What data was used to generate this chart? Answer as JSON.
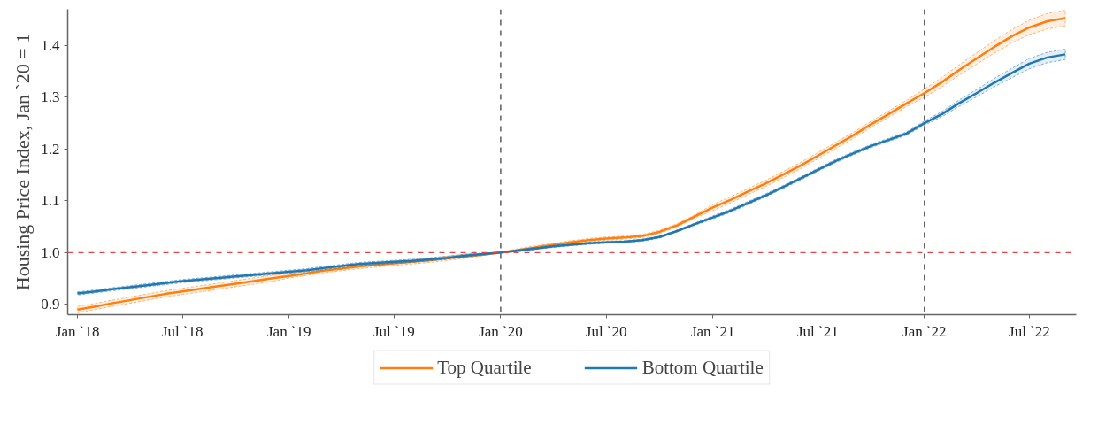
{
  "chart_data": {
    "type": "line",
    "ylabel": "Housing Price Index, Jan `20 = 1",
    "x": [
      "2018-01",
      "2018-02",
      "2018-03",
      "2018-04",
      "2018-05",
      "2018-06",
      "2018-07",
      "2018-08",
      "2018-09",
      "2018-10",
      "2018-11",
      "2018-12",
      "2019-01",
      "2019-02",
      "2019-03",
      "2019-04",
      "2019-05",
      "2019-06",
      "2019-07",
      "2019-08",
      "2019-09",
      "2019-10",
      "2019-11",
      "2019-12",
      "2020-01",
      "2020-02",
      "2020-03",
      "2020-04",
      "2020-05",
      "2020-06",
      "2020-07",
      "2020-08",
      "2020-09",
      "2020-10",
      "2020-11",
      "2020-12",
      "2021-01",
      "2021-02",
      "2021-03",
      "2021-04",
      "2021-05",
      "2021-06",
      "2021-07",
      "2021-08",
      "2021-09",
      "2021-10",
      "2021-11",
      "2021-12",
      "2022-01",
      "2022-02",
      "2022-03",
      "2022-04",
      "2022-05",
      "2022-06",
      "2022-07",
      "2022-08",
      "2022-09"
    ],
    "series": [
      {
        "name": "Top Quartile",
        "color": "#ff7f0e",
        "values": [
          0.89,
          0.896,
          0.902,
          0.908,
          0.914,
          0.92,
          0.925,
          0.93,
          0.935,
          0.94,
          0.945,
          0.95,
          0.955,
          0.96,
          0.965,
          0.969,
          0.973,
          0.976,
          0.979,
          0.982,
          0.985,
          0.989,
          0.993,
          0.996,
          1.0,
          1.005,
          1.01,
          1.015,
          1.02,
          1.024,
          1.027,
          1.029,
          1.032,
          1.04,
          1.053,
          1.07,
          1.087,
          1.102,
          1.117,
          1.133,
          1.15,
          1.168,
          1.187,
          1.207,
          1.227,
          1.248,
          1.268,
          1.288,
          1.308,
          1.33,
          1.352,
          1.375,
          1.397,
          1.418,
          1.435,
          1.447,
          1.453
        ],
        "lower": [
          0.884,
          0.89,
          0.896,
          0.902,
          0.908,
          0.914,
          0.919,
          0.924,
          0.929,
          0.934,
          0.939,
          0.944,
          0.951,
          0.956,
          0.961,
          0.965,
          0.969,
          0.972,
          0.975,
          0.978,
          0.981,
          0.985,
          0.989,
          0.994,
          1.0,
          1.002,
          1.007,
          1.012,
          1.017,
          1.021,
          1.024,
          1.026,
          1.029,
          1.037,
          1.05,
          1.067,
          1.081,
          1.096,
          1.111,
          1.127,
          1.144,
          1.162,
          1.181,
          1.201,
          1.221,
          1.242,
          1.262,
          1.282,
          1.3,
          1.321,
          1.342,
          1.364,
          1.385,
          1.405,
          1.421,
          1.432,
          1.438
        ],
        "upper": [
          0.896,
          0.902,
          0.908,
          0.914,
          0.92,
          0.926,
          0.931,
          0.936,
          0.941,
          0.946,
          0.951,
          0.956,
          0.959,
          0.964,
          0.969,
          0.973,
          0.977,
          0.98,
          0.983,
          0.986,
          0.989,
          0.993,
          0.997,
          0.998,
          1.0,
          1.008,
          1.013,
          1.018,
          1.023,
          1.027,
          1.03,
          1.032,
          1.035,
          1.043,
          1.056,
          1.073,
          1.093,
          1.108,
          1.123,
          1.139,
          1.156,
          1.174,
          1.193,
          1.213,
          1.233,
          1.254,
          1.274,
          1.294,
          1.316,
          1.339,
          1.362,
          1.386,
          1.409,
          1.431,
          1.449,
          1.462,
          1.468
        ]
      },
      {
        "name": "Bottom Quartile",
        "color": "#1f77b4",
        "values": [
          0.921,
          0.925,
          0.929,
          0.933,
          0.937,
          0.941,
          0.945,
          0.948,
          0.951,
          0.954,
          0.957,
          0.96,
          0.963,
          0.966,
          0.97,
          0.974,
          0.978,
          0.98,
          0.982,
          0.984,
          0.987,
          0.99,
          0.994,
          0.997,
          1.0,
          1.004,
          1.008,
          1.012,
          1.015,
          1.018,
          1.02,
          1.021,
          1.024,
          1.03,
          1.042,
          1.055,
          1.068,
          1.081,
          1.095,
          1.11,
          1.126,
          1.143,
          1.16,
          1.177,
          1.192,
          1.206,
          1.218,
          1.23,
          1.25,
          1.268,
          1.288,
          1.308,
          1.328,
          1.347,
          1.365,
          1.377,
          1.383
        ],
        "lower": [
          0.918,
          0.922,
          0.926,
          0.93,
          0.934,
          0.938,
          0.942,
          0.945,
          0.948,
          0.951,
          0.954,
          0.957,
          0.96,
          0.963,
          0.967,
          0.971,
          0.975,
          0.977,
          0.979,
          0.981,
          0.984,
          0.987,
          0.991,
          0.995,
          1.0,
          1.002,
          1.006,
          1.01,
          1.013,
          1.016,
          1.018,
          1.019,
          1.022,
          1.028,
          1.04,
          1.053,
          1.065,
          1.078,
          1.092,
          1.107,
          1.123,
          1.14,
          1.157,
          1.174,
          1.189,
          1.203,
          1.215,
          1.227,
          1.246,
          1.263,
          1.282,
          1.301,
          1.32,
          1.338,
          1.355,
          1.367,
          1.373
        ],
        "upper": [
          0.924,
          0.928,
          0.932,
          0.936,
          0.94,
          0.944,
          0.948,
          0.951,
          0.954,
          0.957,
          0.96,
          0.963,
          0.966,
          0.969,
          0.973,
          0.977,
          0.981,
          0.983,
          0.985,
          0.987,
          0.99,
          0.993,
          0.997,
          0.999,
          1.0,
          1.006,
          1.01,
          1.014,
          1.017,
          1.02,
          1.022,
          1.023,
          1.026,
          1.032,
          1.044,
          1.057,
          1.071,
          1.084,
          1.098,
          1.113,
          1.129,
          1.146,
          1.163,
          1.18,
          1.195,
          1.209,
          1.221,
          1.233,
          1.254,
          1.273,
          1.294,
          1.315,
          1.336,
          1.356,
          1.375,
          1.387,
          1.393
        ]
      }
    ],
    "xlim": [
      "2017-12-15",
      "2022-09-20"
    ],
    "ylim": [
      0.88,
      1.47
    ],
    "xticks": [
      {
        "value": "2018-01",
        "label": "Jan `18"
      },
      {
        "value": "2018-07",
        "label": "Jul `18"
      },
      {
        "value": "2019-01",
        "label": "Jan `19"
      },
      {
        "value": "2019-07",
        "label": "Jul `19"
      },
      {
        "value": "2020-01",
        "label": "Jan `20"
      },
      {
        "value": "2020-07",
        "label": "Jul `20"
      },
      {
        "value": "2021-01",
        "label": "Jan `21"
      },
      {
        "value": "2021-07",
        "label": "Jul `21"
      },
      {
        "value": "2022-01",
        "label": "Jan `22"
      },
      {
        "value": "2022-07",
        "label": "Jul `22"
      }
    ],
    "yticks": [
      0.9,
      {
        "value": 1.0,
        "label": "1.0"
      },
      1.1,
      1.2,
      1.3,
      1.4
    ],
    "ref_lines": [
      {
        "axis": "y",
        "value": 1.0,
        "color": "#e0454a",
        "line_style": "dashed"
      },
      {
        "axis": "x",
        "value": "2020-01",
        "color": "#333333",
        "line_style": "dashed"
      },
      {
        "axis": "x",
        "value": "2022-01",
        "color": "#333333",
        "line_style": "dashed"
      }
    ],
    "grid": false,
    "legend": "bottom",
    "line_style": "solid",
    "marker": "none"
  }
}
